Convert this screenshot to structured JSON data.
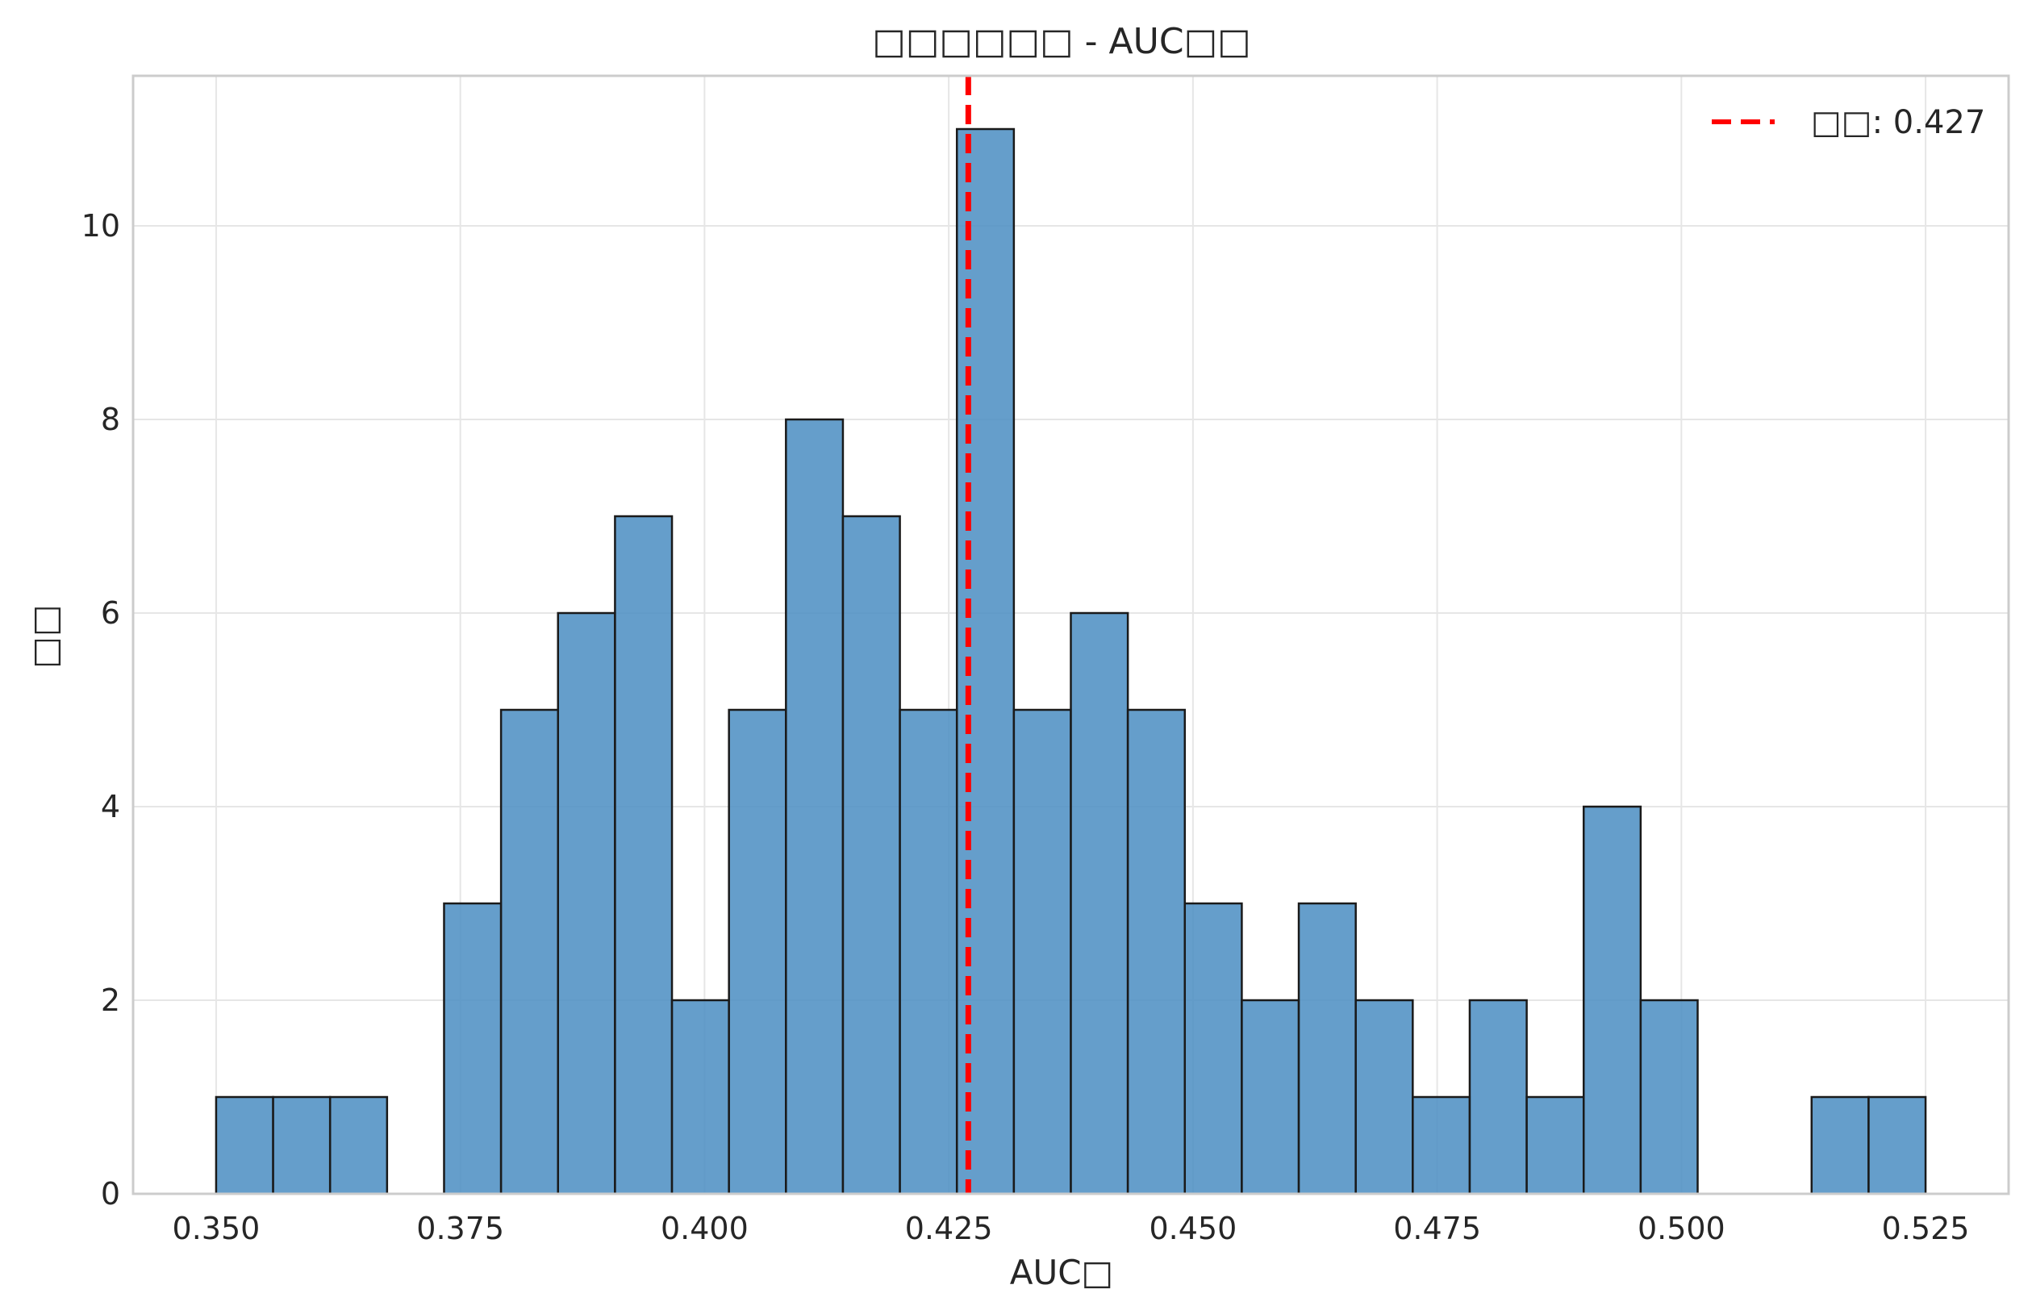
{
  "chart_data": {
    "type": "bar",
    "title": "□□□□□□ - AUC□□",
    "xlabel": "AUC□",
    "ylabel": "□□",
    "xlim": [
      0.3415,
      0.5335
    ],
    "ylim": [
      0,
      11.55
    ],
    "grid": true,
    "legend_position": "top-right",
    "bar_color": "#4a8dc2",
    "bar_edge_color": "#1a1a1a",
    "line_color": "#ff0000",
    "x_ticks": [
      0.35,
      0.375,
      0.4,
      0.425,
      0.45,
      0.475,
      0.5,
      0.525
    ],
    "x_tick_labels": [
      "0.350",
      "0.375",
      "0.400",
      "0.425",
      "0.450",
      "0.475",
      "0.500",
      "0.525"
    ],
    "y_ticks": [
      0,
      2,
      4,
      6,
      8,
      10
    ],
    "y_tick_labels": [
      "0",
      "2",
      "4",
      "6",
      "8",
      "10"
    ],
    "bin_start": 0.35,
    "bin_width": 0.0058333,
    "counts": [
      1,
      1,
      1,
      0,
      3,
      5,
      6,
      7,
      2,
      5,
      8,
      7,
      5,
      11,
      5,
      6,
      5,
      3,
      2,
      3,
      2,
      1,
      2,
      1,
      4,
      2,
      0,
      0,
      1,
      1
    ],
    "mean_line": {
      "value": 0.427,
      "legend_label": "□□: 0.427"
    }
  }
}
